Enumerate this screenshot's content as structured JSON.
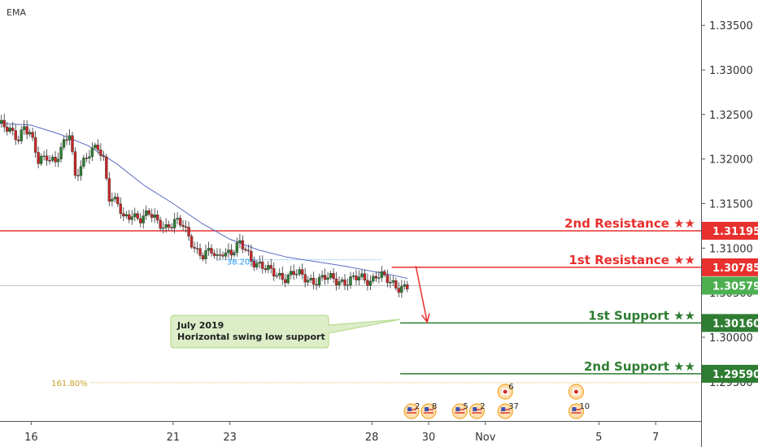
{
  "indicator_label": "EMA",
  "colors": {
    "resistance": "#e8302e",
    "support": "#2e7d32",
    "current": "#4caf50",
    "candle_up": "#2e7d32",
    "candle_down": "#c62828",
    "ema": "#5c6bc0",
    "fib38": "#2196f3",
    "fib161": "#c9a227",
    "current_line": "#c0c0c0"
  },
  "chart_data": {
    "type": "candlestick",
    "y_axis": {
      "ticks": [
        "1.33500",
        "1.33000",
        "1.32500",
        "1.32000",
        "1.31500",
        "1.31000",
        "1.30500",
        "1.30000",
        "1.29500"
      ],
      "range": [
        1.2906,
        1.33785
      ]
    },
    "x_axis": {
      "ticks": [
        {
          "label": "16",
          "day": 16
        },
        {
          "label": "21",
          "day": 21
        },
        {
          "label": "23",
          "day": 23
        },
        {
          "label": "28",
          "day": 28
        },
        {
          "label": "30",
          "day": 30
        },
        {
          "label": "Nov",
          "day": 32
        },
        {
          "label": "5",
          "day": 36
        },
        {
          "label": "7",
          "day": 38
        }
      ],
      "range": [
        14.9,
        39.6
      ]
    },
    "price_path": [
      [
        14.9,
        1.324
      ],
      [
        15.2,
        1.3232
      ],
      [
        15.6,
        1.3225
      ],
      [
        15.8,
        1.3238
      ],
      [
        16.0,
        1.3228
      ],
      [
        16.3,
        1.3196
      ],
      [
        16.6,
        1.3205
      ],
      [
        16.9,
        1.3198
      ],
      [
        17.2,
        1.3215
      ],
      [
        17.4,
        1.3228
      ],
      [
        17.6,
        1.3182
      ],
      [
        17.8,
        1.3195
      ],
      [
        18.1,
        1.3205
      ],
      [
        18.4,
        1.3212
      ],
      [
        18.6,
        1.32
      ],
      [
        18.8,
        1.316
      ],
      [
        19.1,
        1.315
      ],
      [
        19.3,
        1.313
      ],
      [
        19.6,
        1.3138
      ],
      [
        19.9,
        1.3135
      ],
      [
        20.2,
        1.3138
      ],
      [
        20.5,
        1.3128
      ],
      [
        20.8,
        1.3125
      ],
      [
        21.1,
        1.313
      ],
      [
        21.4,
        1.3124
      ],
      [
        21.6,
        1.3112
      ],
      [
        21.9,
        1.3098
      ],
      [
        22.1,
        1.3092
      ],
      [
        22.4,
        1.3095
      ],
      [
        22.6,
        1.3088
      ],
      [
        22.8,
        1.3098
      ],
      [
        23.1,
        1.3095
      ],
      [
        23.4,
        1.3103
      ],
      [
        23.6,
        1.3098
      ],
      [
        23.8,
        1.3088
      ],
      [
        24.1,
        1.3082
      ],
      [
        24.4,
        1.3074
      ],
      [
        24.7,
        1.307
      ],
      [
        25.0,
        1.3068
      ],
      [
        25.3,
        1.3072
      ],
      [
        25.7,
        1.3066
      ],
      [
        26.0,
        1.3064
      ],
      [
        26.4,
        1.3066
      ],
      [
        26.8,
        1.3064
      ],
      [
        27.2,
        1.3063
      ],
      [
        27.6,
        1.3066
      ],
      [
        28.0,
        1.3064
      ],
      [
        28.2,
        1.3071
      ],
      [
        28.4,
        1.3068
      ],
      [
        28.7,
        1.306
      ],
      [
        29.0,
        1.3057
      ],
      [
        29.25,
        1.3058
      ]
    ],
    "ema_path": [
      [
        14.9,
        1.324
      ],
      [
        16.0,
        1.3238
      ],
      [
        17.0,
        1.3228
      ],
      [
        18.0,
        1.3215
      ],
      [
        19.0,
        1.3195
      ],
      [
        20.0,
        1.317
      ],
      [
        21.0,
        1.315
      ],
      [
        22.0,
        1.3128
      ],
      [
        23.0,
        1.311
      ],
      [
        24.0,
        1.3098
      ],
      [
        25.0,
        1.309
      ],
      [
        26.0,
        1.3085
      ],
      [
        27.0,
        1.308
      ],
      [
        28.0,
        1.3074
      ],
      [
        28.7,
        1.307
      ],
      [
        29.25,
        1.3066
      ]
    ],
    "last_candle_day": 29.25,
    "current_price": {
      "label": "1.30579",
      "value": 1.30579
    },
    "levels": [
      {
        "name": "2nd Resistance ★★",
        "value": 1.31195,
        "tag": "1.31195",
        "kind": "resistance",
        "start_day": 14.9
      },
      {
        "name": "1st Resistance ★★",
        "value": 1.30785,
        "tag": "1.30785",
        "kind": "resistance",
        "start_day": 28.7
      },
      {
        "name": "1st Support ★★",
        "value": 1.3016,
        "tag": "1.30160",
        "kind": "support",
        "start_day": 29.0
      },
      {
        "name": "2nd Support ★★",
        "value": 1.2959,
        "tag": "1.29590",
        "kind": "support",
        "start_day": 29.0
      }
    ],
    "fib_levels": [
      {
        "label": "38.20%",
        "value": 1.3087,
        "start_day": 22.6,
        "end_day": 28.3
      },
      {
        "label": "161.80%",
        "value": 1.2949,
        "start_day": 18.1,
        "end_day": 39.6
      }
    ],
    "arrow": {
      "from": [
        29.55,
        1.308
      ],
      "to": [
        29.95,
        1.3017
      ]
    },
    "annotation": {
      "line1": "July 2019",
      "line2": "Horizontal swing low support",
      "points_to": [
        29.0,
        1.302
      ]
    },
    "events": [
      {
        "day": 29.4,
        "flags": "us",
        "count": "2",
        "row": "low"
      },
      {
        "day": 30.0,
        "flags": "us",
        "count": "8",
        "row": "low"
      },
      {
        "day": 31.1,
        "flags": "us",
        "count": "5",
        "row": "low"
      },
      {
        "day": 31.7,
        "flags": "us",
        "count": "2",
        "row": "low"
      },
      {
        "day": 32.7,
        "flags": "ca",
        "count": "6",
        "row": "high"
      },
      {
        "day": 32.7,
        "flags": "us",
        "count": "37",
        "row": "low"
      },
      {
        "day": 35.2,
        "flags": "ca",
        "count": "",
        "row": "high"
      },
      {
        "day": 35.2,
        "flags": "us",
        "count": "10",
        "row": "low"
      }
    ]
  }
}
